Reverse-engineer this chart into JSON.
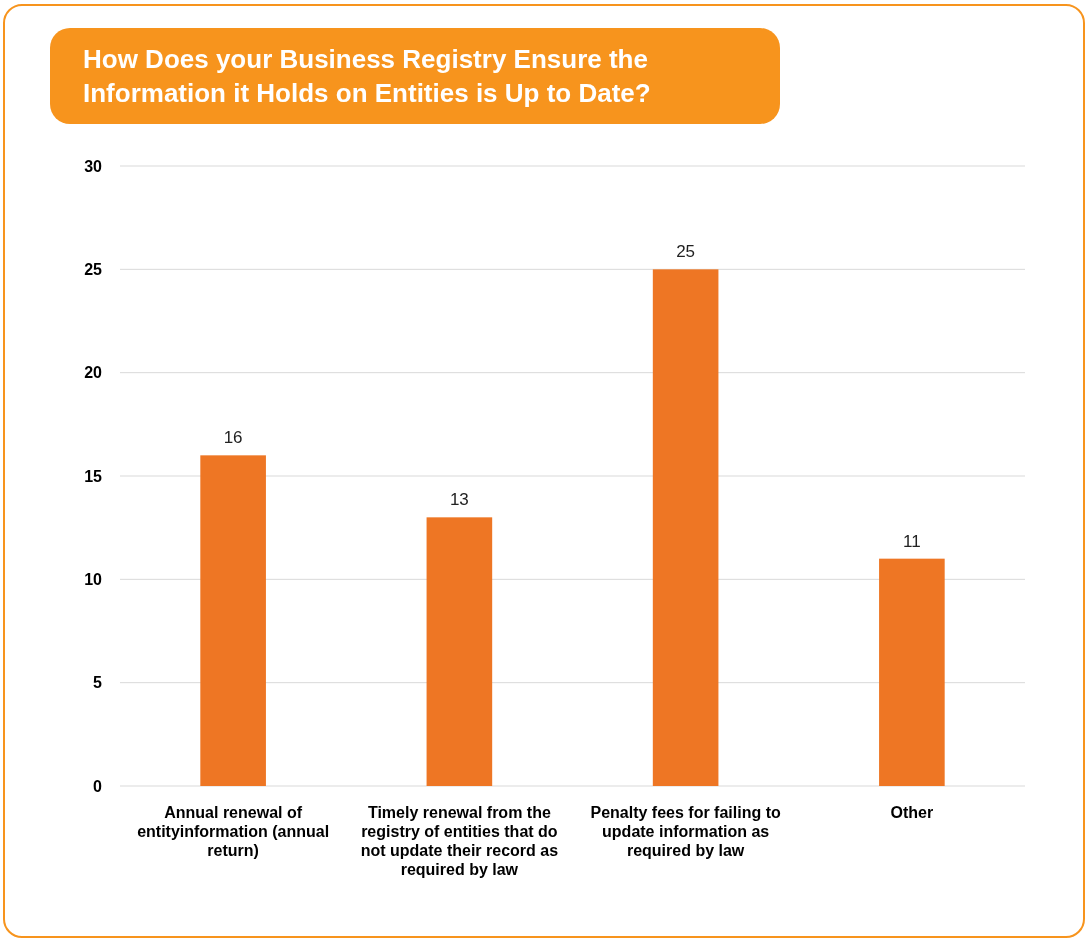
{
  "chart_data": {
    "type": "bar",
    "title": "How Does your Business Registry Ensure the Information it Holds on Entities is Up to Date?",
    "categories": [
      "Annual renewal of entityinformation (annual return)",
      "Timely renewal from the registry of entities that do not update their record as required by law",
      "Penalty fees for failing to update information as required by law",
      "Other"
    ],
    "values": [
      16,
      13,
      25,
      11
    ],
    "color": "#ee7624",
    "ylim": [
      0,
      30
    ],
    "yticks": [
      0,
      5,
      10,
      15,
      20,
      25,
      30
    ],
    "grid": "y",
    "data_labels": true
  }
}
